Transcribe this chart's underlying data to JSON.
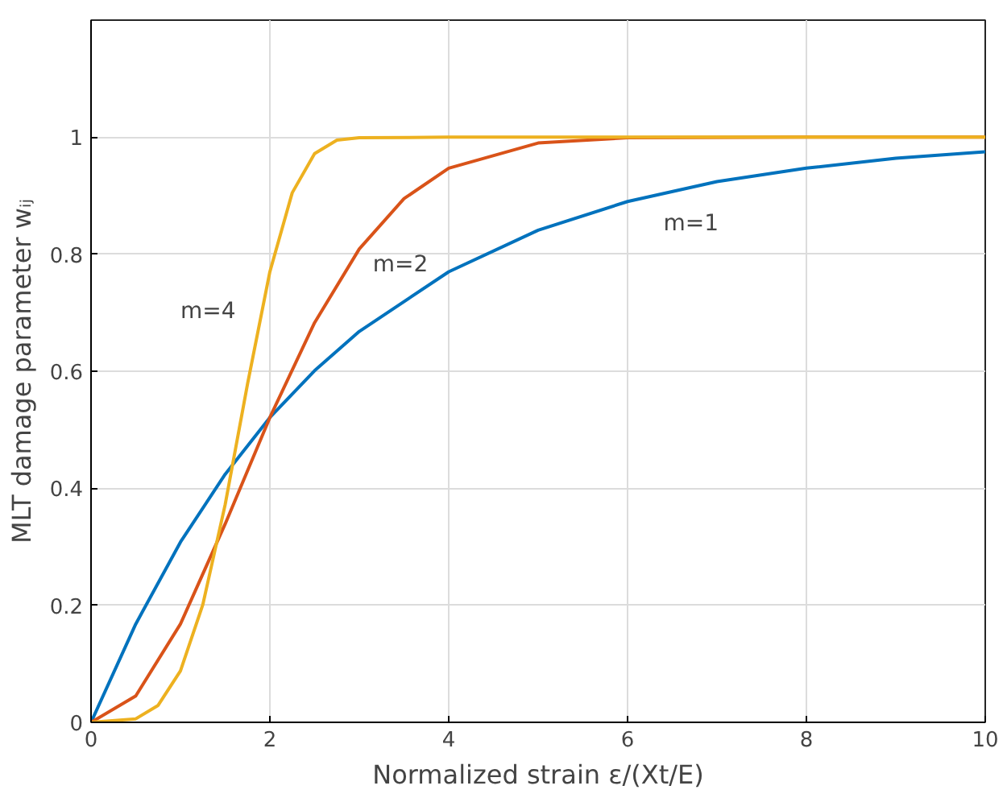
{
  "chart_data": {
    "type": "line",
    "xlabel": "Normalized strain ε/(Xt/E)",
    "ylabel": "MLT damage parameter wᵢⱼ",
    "xlim": [
      0,
      10
    ],
    "ylim": [
      0,
      1.2
    ],
    "xticks": [
      0,
      2,
      4,
      6,
      8,
      10
    ],
    "yticks": [
      0,
      0.2,
      0.4,
      0.6,
      0.8,
      1
    ],
    "grid": true,
    "legend": false,
    "marker": "none",
    "line_style": "solid",
    "series": [
      {
        "name": "m=1",
        "color": "#0072bd",
        "x": [
          0,
          0.5,
          1,
          1.5,
          2,
          2.5,
          3,
          4,
          5,
          6,
          7,
          8,
          9,
          10
        ],
        "values": [
          0,
          0.168,
          0.308,
          0.424,
          0.521,
          0.601,
          0.668,
          0.77,
          0.841,
          0.89,
          0.924,
          0.947,
          0.964,
          0.975
        ]
      },
      {
        "name": "m=2",
        "color": "#d95319",
        "x": [
          0,
          0.5,
          1,
          1.5,
          2,
          2.5,
          3,
          3.5,
          4,
          5,
          6,
          8,
          10
        ],
        "values": [
          0,
          0.045,
          0.168,
          0.339,
          0.521,
          0.683,
          0.809,
          0.895,
          0.947,
          0.99,
          0.999,
          1,
          1
        ]
      },
      {
        "name": "m=4",
        "color": "#edb120",
        "x": [
          0,
          0.5,
          0.75,
          1,
          1.25,
          1.5,
          1.75,
          2,
          2.25,
          2.5,
          2.75,
          3,
          4,
          10
        ],
        "values": [
          0,
          0.006,
          0.029,
          0.088,
          0.201,
          0.372,
          0.578,
          0.77,
          0.905,
          0.972,
          0.995,
          0.999,
          1,
          1
        ]
      }
    ]
  }
}
